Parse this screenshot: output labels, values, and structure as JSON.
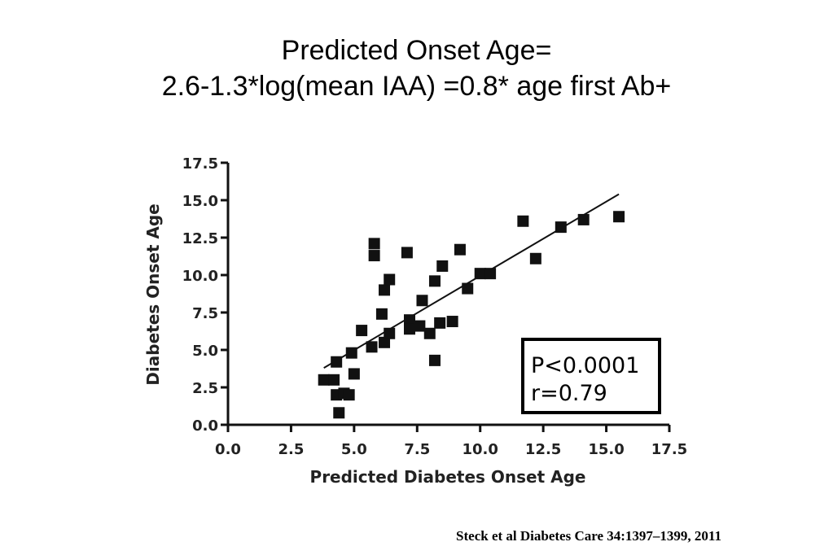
{
  "slide": {
    "title_line1": "Predicted Onset Age=",
    "title_line2": "2.6-1.3*log(mean IAA) =0.8* age first Ab+",
    "citation": "Steck et al Diabetes Care 34:1397–1399, 2011"
  },
  "chart_data": {
    "type": "scatter",
    "xlabel": "Predicted Diabetes Onset Age",
    "ylabel": "Diabetes Onset Age",
    "xlim": [
      0,
      17.5
    ],
    "ylim": [
      0,
      17.5
    ],
    "xticks": [
      "0.0",
      "2.5",
      "5.0",
      "7.5",
      "10.0",
      "12.5",
      "15.0",
      "17.5"
    ],
    "yticks": [
      "0.0",
      "2.5",
      "5.0",
      "7.5",
      "10.0",
      "12.5",
      "15.0",
      "17.5"
    ],
    "grid": false,
    "annotation": {
      "line1": "P<0.0001",
      "line2": "r=0.79"
    },
    "fit_line": {
      "x": [
        3.8,
        15.5
      ],
      "y": [
        3.8,
        15.4
      ]
    },
    "points": [
      {
        "x": 3.8,
        "y": 3.0
      },
      {
        "x": 4.2,
        "y": 3.0
      },
      {
        "x": 4.3,
        "y": 4.2
      },
      {
        "x": 4.3,
        "y": 2.0
      },
      {
        "x": 4.4,
        "y": 0.8
      },
      {
        "x": 4.6,
        "y": 2.1
      },
      {
        "x": 4.8,
        "y": 2.0
      },
      {
        "x": 4.9,
        "y": 4.8
      },
      {
        "x": 5.0,
        "y": 3.4
      },
      {
        "x": 5.3,
        "y": 6.3
      },
      {
        "x": 5.7,
        "y": 5.2
      },
      {
        "x": 5.8,
        "y": 12.1
      },
      {
        "x": 5.8,
        "y": 11.3
      },
      {
        "x": 6.1,
        "y": 7.4
      },
      {
        "x": 6.2,
        "y": 5.5
      },
      {
        "x": 6.2,
        "y": 9.0
      },
      {
        "x": 6.4,
        "y": 9.7
      },
      {
        "x": 6.4,
        "y": 6.1
      },
      {
        "x": 7.1,
        "y": 11.5
      },
      {
        "x": 7.2,
        "y": 7.0
      },
      {
        "x": 7.2,
        "y": 6.4
      },
      {
        "x": 7.6,
        "y": 6.6
      },
      {
        "x": 7.7,
        "y": 8.3
      },
      {
        "x": 8.0,
        "y": 6.1
      },
      {
        "x": 8.2,
        "y": 9.6
      },
      {
        "x": 8.2,
        "y": 4.3
      },
      {
        "x": 8.4,
        "y": 6.8
      },
      {
        "x": 8.5,
        "y": 10.6
      },
      {
        "x": 8.9,
        "y": 6.9
      },
      {
        "x": 9.2,
        "y": 11.7
      },
      {
        "x": 9.5,
        "y": 9.1
      },
      {
        "x": 10.0,
        "y": 10.1
      },
      {
        "x": 10.4,
        "y": 10.1
      },
      {
        "x": 11.7,
        "y": 13.6
      },
      {
        "x": 12.2,
        "y": 11.1
      },
      {
        "x": 13.2,
        "y": 13.2
      },
      {
        "x": 14.1,
        "y": 13.7
      },
      {
        "x": 15.5,
        "y": 13.9
      }
    ]
  }
}
